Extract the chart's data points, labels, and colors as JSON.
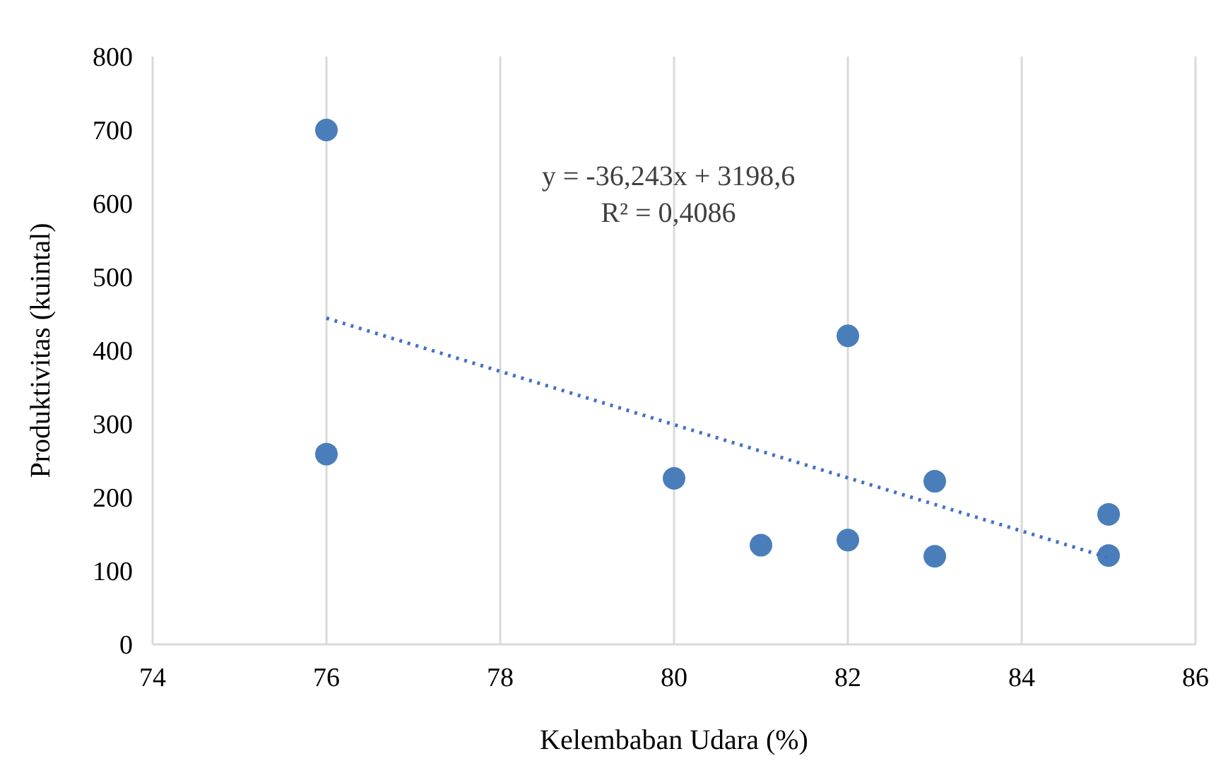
{
  "chart_data": {
    "type": "scatter",
    "xlabel": "Kelembaban Udara (%)",
    "ylabel": "Produktivitas (kuintal)",
    "annotations": [
      "y = -36,243x + 3198,6",
      "R² = 0,4086"
    ],
    "series": [
      {
        "color": "#4a7ebb",
        "x": [
          76,
          76,
          80,
          81,
          82,
          82,
          83,
          83,
          85,
          85
        ],
        "values": [
          700,
          259,
          226,
          135,
          420,
          142,
          222,
          120,
          177,
          121
        ],
        "marker": "circle"
      },
      {
        "type": "line",
        "color": "#4472c4",
        "x": [
          76,
          85
        ],
        "values": [
          444,
          118
        ],
        "marker": "none",
        "line_style": "dotted"
      }
    ],
    "xlim": [
      74,
      86
    ],
    "xticks": [
      74,
      76,
      78,
      80,
      82,
      84,
      86
    ],
    "ylim": [
      0,
      800
    ],
    "yticks": [
      0,
      100,
      200,
      300,
      400,
      500,
      600,
      700,
      800
    ],
    "grid": "x"
  }
}
